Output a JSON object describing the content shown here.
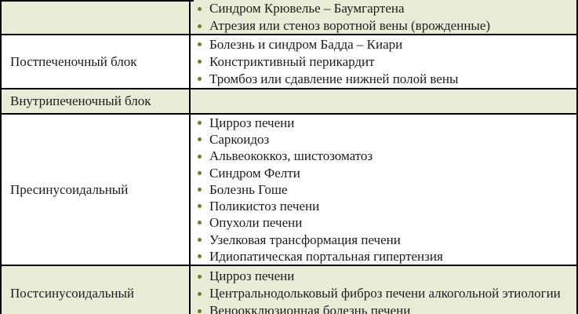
{
  "table": {
    "description_visible": false,
    "columns": 2,
    "colors": {
      "shaded_row_bg": "#e9edd8",
      "plain_row_bg": "#ffffff",
      "border": "#000000",
      "text": "#1c1c1c",
      "bullet": "#6f7b2f"
    },
    "rows": [
      {
        "label": "",
        "items": [
          "Синдром Крювелье – Баумгартена",
          "Атрезия или стеноз воротной вены (врожденные)"
        ]
      },
      {
        "label": "Постпеченочный блок",
        "items": [
          "Болезнь и синдром Бадда – Киари",
          "Констриктивный перикардит",
          "Тромбоз или сдавление нижней полой вены"
        ]
      },
      {
        "label": "Внутрипеченочный блок",
        "items": []
      },
      {
        "label": "Пресинусоидальный",
        "items": [
          "Цирроз печени",
          "Саркоидоз",
          "Альвеококкоз, шистозоматоз",
          "Синдром Фелти",
          "Болезнь Гоше",
          "Поликистоз печени",
          "Опухоли печени",
          "Узелковая трансформация печени",
          "Идиопатическая портальная гипертензия"
        ]
      },
      {
        "label": "Постсинусоидальный",
        "items": [
          "Цирроз печени",
          "Центральнодольковый фиброз печени алкогольной этиологии",
          "Веноокклюзионная болезнь печени"
        ]
      }
    ]
  }
}
